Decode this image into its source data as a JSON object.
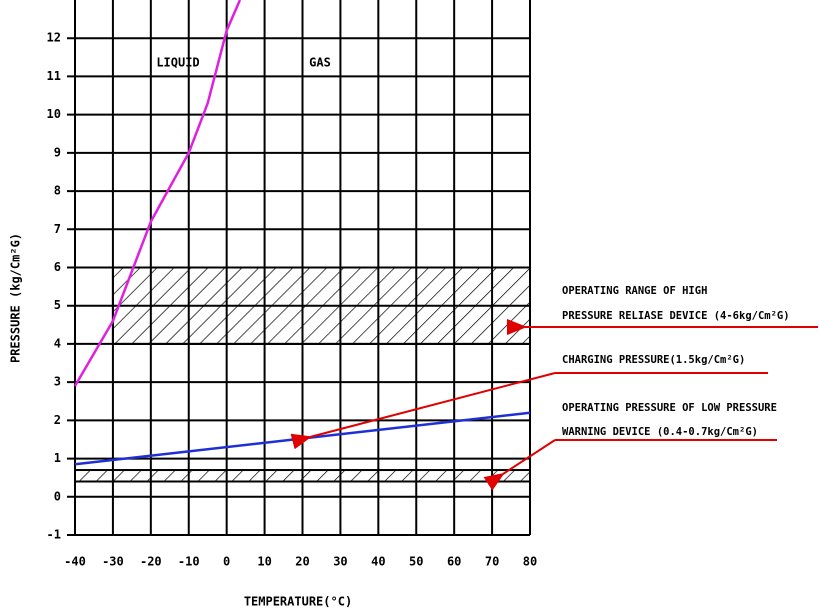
{
  "chart_data": {
    "type": "line",
    "xlabel": "TEMPERATURE(°C)",
    "ylabel": "PRESSURE (kg/Cm²G)",
    "xlim": [
      -40,
      80
    ],
    "xticks": [
      -40,
      -30,
      -20,
      -10,
      0,
      10,
      20,
      30,
      40,
      50,
      60,
      70,
      80
    ],
    "ylim": [
      -1,
      13
    ],
    "yticks": [
      -1,
      0,
      1,
      2,
      3,
      4,
      5,
      6,
      7,
      8,
      9,
      10,
      11,
      12
    ],
    "grid": true,
    "series": [
      {
        "color": "#e020e0",
        "x": [
          -40,
          -30,
          -25,
          -20,
          -15,
          -10,
          -5,
          0,
          3.5
        ],
        "values": [
          2.9,
          4.6,
          5.9,
          7.2,
          8.1,
          9.0,
          10.3,
          12.2,
          13
        ]
      },
      {
        "color": "#1f2fd6",
        "x": [
          -40,
          80
        ],
        "values": [
          0.85,
          2.2
        ]
      }
    ],
    "bands": [
      {
        "x": [
          -30,
          80
        ],
        "y": [
          4,
          6
        ]
      },
      {
        "x": [
          -40,
          80
        ],
        "y": [
          0.4,
          0.7
        ]
      }
    ],
    "region_labels": [
      "LIQUID",
      "GAS"
    ],
    "notes": [
      "OPERATING RANGE OF HIGH",
      "PRESSURE RELIASE DEVICE (4-6kg/Cm²G)",
      "CHARGING PRESSURE(1.5kg/Cm²G)",
      "OPERATING PRESSURE OF LOW PRESSURE",
      "WARNING DEVICE (0.4-0.7kg/Cm²G)"
    ]
  }
}
